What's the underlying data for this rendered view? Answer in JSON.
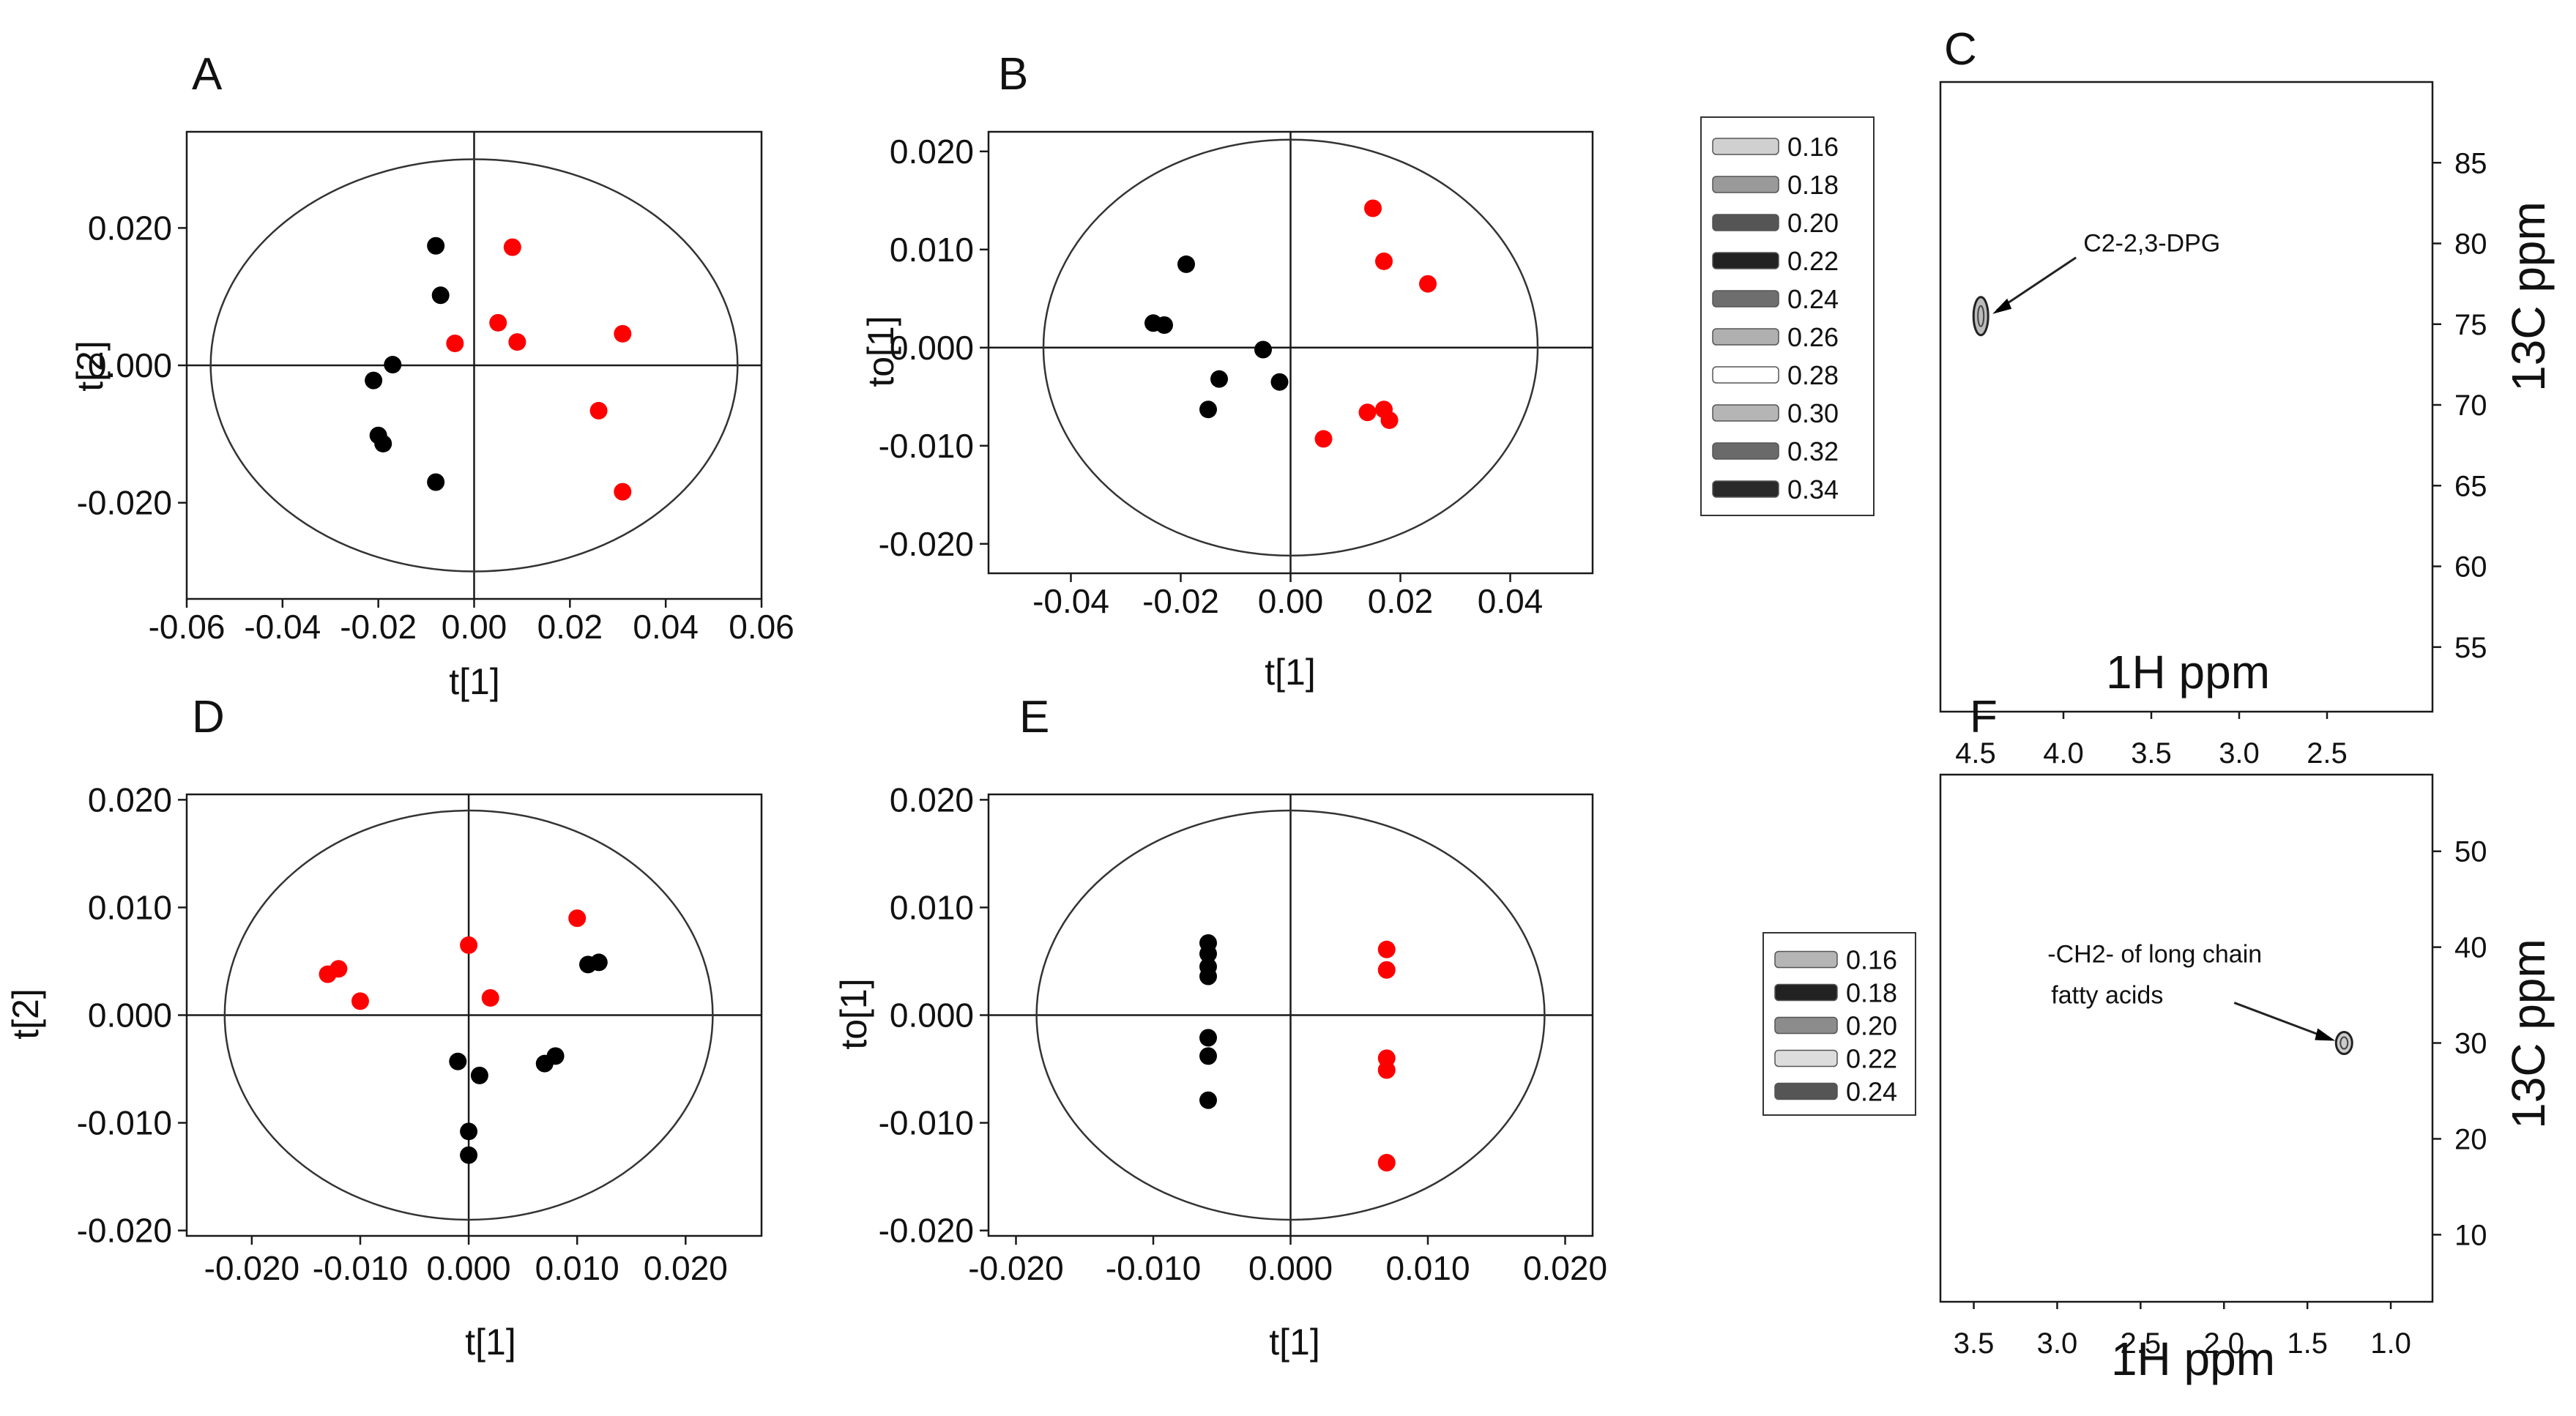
{
  "chart_data": [
    {
      "panel": "A",
      "type": "scatter",
      "xlabel": "t[1]",
      "ylabel": "t[2]",
      "xlim": [
        -0.06,
        0.06
      ],
      "ylim": [
        -0.034,
        0.034
      ],
      "xticks": [
        -0.06,
        -0.04,
        -0.02,
        0.0,
        0.02,
        0.04,
        0.06
      ],
      "xtick_labels": [
        "-0.06",
        "-0.04",
        "-0.02",
        "0.00",
        "0.02",
        "0.04",
        "0.06"
      ],
      "yticks": [
        -0.02,
        0.0,
        0.02
      ],
      "ytick_labels": [
        "-0.020",
        "0.000",
        "0.020"
      ],
      "ellipse": {
        "cx": 0.0,
        "cy": 0.0,
        "rx": 0.055,
        "ry": 0.03
      },
      "series": [
        {
          "name": "black",
          "color": "#000000",
          "points": [
            [
              -0.008,
              0.0174
            ],
            [
              -0.007,
              0.0102
            ],
            [
              -0.017,
              0.0001
            ],
            [
              -0.021,
              -0.0022
            ],
            [
              -0.02,
              -0.0102
            ],
            [
              -0.019,
              -0.0114
            ],
            [
              -0.008,
              -0.017
            ]
          ]
        },
        {
          "name": "red",
          "color": "#ff0000",
          "points": [
            [
              0.008,
              0.0172
            ],
            [
              0.005,
              0.0062
            ],
            [
              0.009,
              0.0034
            ],
            [
              -0.004,
              0.0032
            ],
            [
              0.031,
              0.0046
            ],
            [
              0.026,
              -0.0066
            ],
            [
              0.031,
              -0.0184
            ]
          ]
        }
      ]
    },
    {
      "panel": "B",
      "type": "scatter",
      "xlabel": "t[1]",
      "ylabel": "to[1]",
      "xlim": [
        -0.055,
        0.055
      ],
      "ylim": [
        -0.023,
        0.022
      ],
      "xticks": [
        -0.04,
        -0.02,
        0.0,
        0.02,
        0.04
      ],
      "xtick_labels": [
        "-0.04",
        "-0.02",
        "0.00",
        "0.02",
        "0.04"
      ],
      "yticks": [
        -0.02,
        -0.01,
        0.0,
        0.01,
        0.02
      ],
      "ytick_labels": [
        "-0.020",
        "-0.010",
        "0.000",
        "0.010",
        "0.020"
      ],
      "ellipse": {
        "cx": 0.0,
        "cy": 0.0,
        "rx": 0.045,
        "ry": 0.0212
      },
      "series": [
        {
          "name": "black",
          "color": "#000000",
          "points": [
            [
              -0.019,
              0.0085
            ],
            [
              -0.025,
              0.0025
            ],
            [
              -0.023,
              0.0023
            ],
            [
              -0.005,
              -0.0002
            ],
            [
              -0.013,
              -0.0032
            ],
            [
              -0.002,
              -0.0035
            ],
            [
              -0.015,
              -0.0063
            ]
          ]
        },
        {
          "name": "red",
          "color": "#ff0000",
          "points": [
            [
              0.015,
              0.0142
            ],
            [
              0.017,
              0.0088
            ],
            [
              0.025,
              0.0065
            ],
            [
              0.017,
              -0.0063
            ],
            [
              0.014,
              -0.0066
            ],
            [
              0.018,
              -0.0074
            ],
            [
              0.006,
              -0.0093
            ]
          ]
        }
      ]
    },
    {
      "panel": "C",
      "type": "contour",
      "xlabel": "1H ppm",
      "ylabel": "13C ppm",
      "xlim": [
        4.7,
        1.9
      ],
      "ylim": [
        51,
        90
      ],
      "xticks": [
        4.5,
        4.0,
        3.5,
        3.0,
        2.5
      ],
      "xtick_labels": [
        "4.5",
        "4.0",
        "3.5",
        "3.0",
        "2.5"
      ],
      "yticks": [
        55,
        60,
        65,
        70,
        75,
        80,
        85
      ],
      "ytick_labels": [
        "55",
        "60",
        "65",
        "70",
        "75",
        "80",
        "85"
      ],
      "peak": {
        "x": 4.47,
        "y": 75.5
      },
      "annotation": "C2-2,3-DPG",
      "legend": {
        "levels": [
          "0.16",
          "0.18",
          "0.20",
          "0.22",
          "0.24",
          "0.26",
          "0.28",
          "0.30",
          "0.32",
          "0.34"
        ],
        "colors": [
          "#d0d0d0",
          "#9a9a9a",
          "#555555",
          "#222222",
          "#6e6e6e",
          "#b0b0b0",
          "#ffffff",
          "#b5b5b5",
          "#6a6a6a",
          "#2a2a2a"
        ]
      }
    },
    {
      "panel": "D",
      "type": "scatter",
      "xlabel": "t[1]",
      "ylabel": "t[2]",
      "xlim": [
        -0.026,
        0.027
      ],
      "ylim": [
        -0.0205,
        0.0205
      ],
      "xticks": [
        -0.02,
        -0.01,
        0.0,
        0.01,
        0.02
      ],
      "xtick_labels": [
        "-0.020",
        "-0.010",
        "0.000",
        "0.010",
        "0.020"
      ],
      "yticks": [
        -0.02,
        -0.01,
        0.0,
        0.01,
        0.02
      ],
      "ytick_labels": [
        "-0.020",
        "-0.010",
        "0.000",
        "0.010",
        "0.020"
      ],
      "ellipse": {
        "cx": 0.0,
        "cy": 0.0,
        "rx": 0.0225,
        "ry": 0.019
      },
      "series": [
        {
          "name": "black",
          "color": "#000000",
          "points": [
            [
              0.011,
              0.0047
            ],
            [
              0.012,
              0.0049
            ],
            [
              -0.001,
              -0.0043
            ],
            [
              0.001,
              -0.0056
            ],
            [
              0.008,
              -0.0038
            ],
            [
              0.007,
              -0.0045
            ],
            [
              -0.0,
              -0.0108
            ],
            [
              -0.0,
              -0.013
            ]
          ]
        },
        {
          "name": "red",
          "color": "#ff0000",
          "points": [
            [
              0.01,
              0.009
            ],
            [
              -0.0,
              0.0065
            ],
            [
              -0.012,
              0.0043
            ],
            [
              -0.013,
              0.0038
            ],
            [
              -0.01,
              0.0013
            ],
            [
              0.002,
              0.0016
            ]
          ]
        }
      ]
    },
    {
      "panel": "E",
      "type": "scatter",
      "xlabel": "t[1]",
      "ylabel": "to[1]",
      "xlim": [
        -0.022,
        0.022
      ],
      "ylim": [
        -0.0205,
        0.0205
      ],
      "xticks": [
        -0.02,
        -0.01,
        0.0,
        0.01,
        0.02
      ],
      "xtick_labels": [
        "-0.020",
        "-0.010",
        "0.000",
        "0.010",
        "0.020"
      ],
      "yticks": [
        -0.02,
        -0.01,
        0.0,
        0.01,
        0.02
      ],
      "ytick_labels": [
        "-0.020",
        "-0.010",
        "0.000",
        "0.010",
        "0.020"
      ],
      "ellipse": {
        "cx": 0.0,
        "cy": 0.0,
        "rx": 0.0185,
        "ry": 0.019
      },
      "series": [
        {
          "name": "black",
          "color": "#000000",
          "points": [
            [
              -0.006,
              0.0067
            ],
            [
              -0.006,
              0.0057
            ],
            [
              -0.006,
              0.0045
            ],
            [
              -0.006,
              0.0036
            ],
            [
              -0.006,
              -0.0021
            ],
            [
              -0.006,
              -0.0038
            ],
            [
              -0.006,
              -0.0079
            ]
          ]
        },
        {
          "name": "red",
          "color": "#ff0000",
          "points": [
            [
              0.007,
              0.0061
            ],
            [
              0.007,
              0.0042
            ],
            [
              0.007,
              -0.004
            ],
            [
              0.007,
              -0.0051
            ],
            [
              0.007,
              -0.0137
            ]
          ]
        }
      ]
    },
    {
      "panel": "F",
      "type": "contour",
      "xlabel": "1H ppm",
      "ylabel": "13C ppm",
      "xlim": [
        3.7,
        0.75
      ],
      "ylim": [
        3,
        58
      ],
      "xticks": [
        3.5,
        3.0,
        2.5,
        2.0,
        1.5,
        1.0
      ],
      "xtick_labels": [
        "3.5",
        "3.0",
        "2.5",
        "2.0",
        "1.5",
        "1.0"
      ],
      "yticks": [
        10,
        20,
        30,
        40,
        50
      ],
      "ytick_labels": [
        "10",
        "20",
        "30",
        "40",
        "50"
      ],
      "peak": {
        "x": 1.28,
        "y": 30
      },
      "annotation_lines": [
        "-CH2- of long chain",
        "fatty acids"
      ],
      "legend": {
        "levels": [
          "0.16",
          "0.18",
          "0.20",
          "0.22",
          "0.24"
        ],
        "colors": [
          "#b5b5b5",
          "#222222",
          "#8c8c8c",
          "#dcdcdc",
          "#555555"
        ]
      }
    }
  ]
}
